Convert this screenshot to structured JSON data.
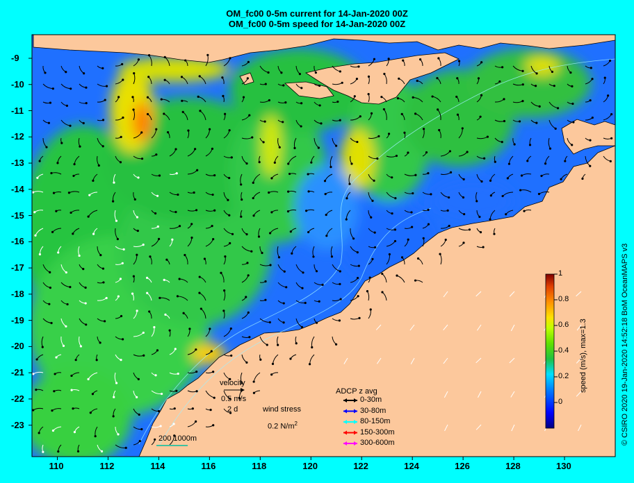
{
  "titles": {
    "line1": "OM_fc00 0-5m current for 14-Jan-2020 00Z",
    "line2": "OM_fc00 0-5m speed for 14-Jan-2020 00Z"
  },
  "axes": {
    "y_ticks": [
      "-9",
      "-10",
      "-11",
      "-12",
      "-13",
      "-14",
      "-15",
      "-16",
      "-17",
      "-18",
      "-19",
      "-20",
      "-21",
      "-22",
      "-23"
    ],
    "x_ticks": [
      "110",
      "112",
      "114",
      "116",
      "118",
      "120",
      "122",
      "124",
      "126",
      "128",
      "130"
    ],
    "lon_range": [
      109,
      132
    ],
    "lat_range": [
      -8.1,
      -24.2
    ]
  },
  "colorbar": {
    "label": "speed (m/s), max=1.3",
    "ticks": [
      "1",
      "0.8",
      "0.6",
      "0.4",
      "0.2",
      "0"
    ],
    "range": [
      -0.2,
      1.0
    ]
  },
  "velocity_key": {
    "title": "velocity",
    "speed": "0.5 m/s",
    "duration": "2 d"
  },
  "wind_key": {
    "title": "wind stress",
    "value": "0.2 N/m",
    "exponent": "2"
  },
  "scale_key": {
    "label": "200  1000m"
  },
  "adcp_legend": {
    "title": "ADCP z avg",
    "entries": [
      {
        "label": "0-30m",
        "color": "#000000"
      },
      {
        "label": "30-80m",
        "color": "#0000ff"
      },
      {
        "label": "80-150m",
        "color": "#00ffff"
      },
      {
        "label": "150-300m",
        "color": "#ff0000"
      },
      {
        "label": "300-600m",
        "color": "#ff00ff"
      }
    ]
  },
  "credit": "© CSIRO 2020   19-Jan-2020 14:52:18 BoM OceanMAPS v3",
  "colors": {
    "background": "#00ffff",
    "land": "#fcc89c",
    "ocean_low": "#1060ff",
    "ocean_mid": "#20c040",
    "ocean_high": "#e0e000"
  }
}
